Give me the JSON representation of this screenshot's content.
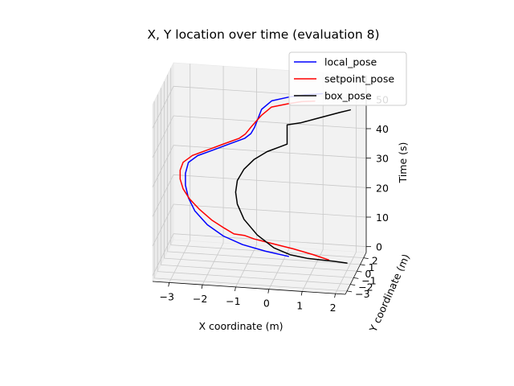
{
  "chart_data": {
    "type": "line",
    "projection": "3d",
    "title": "X, Y location over time (evaluation 8)",
    "xlabel": "X coordinate (m)",
    "ylabel": "Y coordinate (m)",
    "zlabel": "Time (s)",
    "xlim": [
      -3.5,
      2.3
    ],
    "ylim": [
      -3.5,
      2.8
    ],
    "zlim": [
      -2,
      58
    ],
    "xticks": [
      -3,
      -2,
      -1,
      0,
      1,
      2
    ],
    "yticks": [
      -3,
      -2,
      -1,
      0,
      1,
      2
    ],
    "zticks": [
      0,
      10,
      20,
      30,
      40,
      50
    ],
    "grid": true,
    "legend": {
      "placement": "top-right"
    },
    "series": [
      {
        "name": "local_pose",
        "color": "#0000ff",
        "points": [
          [
            0.2,
            0.4,
            0.5
          ],
          [
            -0.5,
            0.5,
            1.5
          ],
          [
            -1.2,
            0.6,
            3
          ],
          [
            -1.8,
            0.8,
            5
          ],
          [
            -2.3,
            1.0,
            8
          ],
          [
            -2.7,
            1.2,
            12
          ],
          [
            -2.9,
            1.3,
            16
          ],
          [
            -3.0,
            1.4,
            20
          ],
          [
            -3.0,
            1.4,
            24
          ],
          [
            -2.9,
            1.3,
            28
          ],
          [
            -2.6,
            1.1,
            31
          ],
          [
            -2.1,
            0.8,
            34
          ],
          [
            -1.6,
            0.5,
            37
          ],
          [
            -1.1,
            0.2,
            40
          ],
          [
            -0.9,
            0.1,
            42
          ],
          [
            -0.8,
            0.2,
            44
          ],
          [
            -0.6,
            0.3,
            50
          ],
          [
            -0.3,
            0.35,
            53
          ],
          [
            0.2,
            0.4,
            54.5
          ],
          [
            0.7,
            0.5,
            55.5
          ],
          [
            1.2,
            0.6,
            56
          ]
        ]
      },
      {
        "name": "setpoint_pose",
        "color": "#ff0000",
        "points": [
          [
            1.4,
            0.5,
            0
          ],
          [
            0.9,
            0.7,
            1
          ],
          [
            0.3,
            0.9,
            2
          ],
          [
            -0.3,
            1.0,
            3
          ],
          [
            -0.9,
            1.1,
            4
          ],
          [
            -1.2,
            1.1,
            5
          ],
          [
            -1.5,
            1.0,
            5.5
          ],
          [
            -1.8,
            1.1,
            7
          ],
          [
            -2.2,
            1.3,
            9
          ],
          [
            -2.6,
            1.5,
            12
          ],
          [
            -2.9,
            1.6,
            15
          ],
          [
            -3.1,
            1.7,
            18
          ],
          [
            -3.2,
            1.8,
            21
          ],
          [
            -3.2,
            1.8,
            24
          ],
          [
            -3.1,
            1.7,
            27
          ],
          [
            -2.8,
            1.5,
            30
          ],
          [
            -2.3,
            1.2,
            33
          ],
          [
            -1.8,
            0.9,
            36
          ],
          [
            -1.3,
            0.6,
            39
          ],
          [
            -1.1,
            0.4,
            41
          ],
          [
            -0.9,
            0.3,
            44
          ],
          [
            -0.6,
            0.3,
            48
          ],
          [
            -0.3,
            0.3,
            51
          ],
          [
            0.2,
            0.3,
            52.5
          ],
          [
            0.6,
            0.3,
            53.5
          ],
          [
            1.0,
            0.3,
            54
          ]
        ]
      },
      {
        "name": "box_pose",
        "color": "#000000",
        "points": [
          [
            2.0,
            0.0,
            0.5
          ],
          [
            1.6,
            0.0,
            0.8
          ],
          [
            1.2,
            0.0,
            1.0
          ],
          [
            0.8,
            0.0,
            1.2
          ],
          [
            0.3,
            0.0,
            2.0
          ],
          [
            -0.2,
            0.0,
            4.0
          ],
          [
            -0.7,
            0.0,
            8.0
          ],
          [
            -1.1,
            0.0,
            13.0
          ],
          [
            -1.3,
            0.0,
            18.0
          ],
          [
            -1.35,
            0.0,
            22.0
          ],
          [
            -1.3,
            0.0,
            26.0
          ],
          [
            -1.1,
            0.0,
            30.0
          ],
          [
            -0.8,
            0.0,
            33.5
          ],
          [
            -0.4,
            0.0,
            36.5
          ],
          [
            0.0,
            0.0,
            38.5
          ],
          [
            0.2,
            0.0,
            39.5
          ],
          [
            0.2,
            0.0,
            46.0
          ],
          [
            0.6,
            0.0,
            47.0
          ],
          [
            1.0,
            0.0,
            48.5
          ],
          [
            1.4,
            0.0,
            50.0
          ],
          [
            1.8,
            0.0,
            51.5
          ],
          [
            2.1,
            0.0,
            52.5
          ]
        ]
      }
    ]
  }
}
